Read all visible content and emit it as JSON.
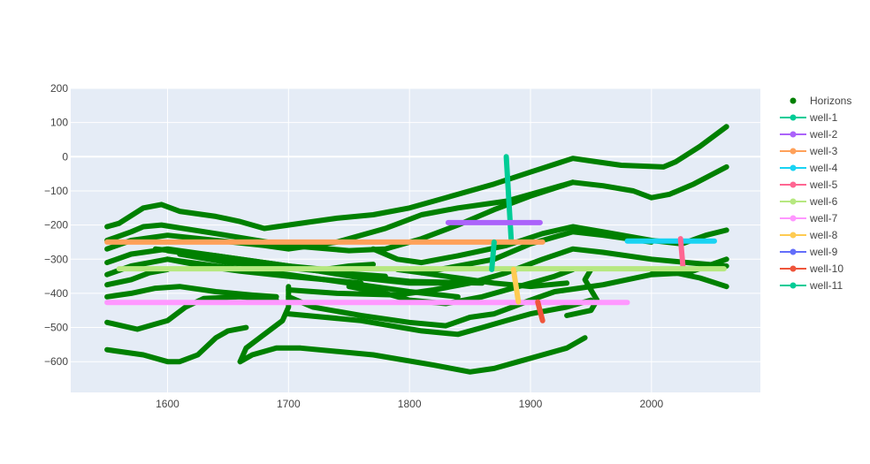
{
  "chart_data": {
    "type": "scatter",
    "title": "",
    "xlabel": "",
    "ylabel": "",
    "xlim": [
      1520,
      2090
    ],
    "ylim": [
      -690,
      200
    ],
    "x_ticks": [
      1600,
      1700,
      1800,
      1900,
      2000
    ],
    "y_ticks": [
      200,
      100,
      0,
      -100,
      -200,
      -300,
      -400,
      -500,
      -600
    ],
    "grid": true,
    "legend_position": "right",
    "colors": {
      "plot_background": "#e5ecf6",
      "grid": "#ffffff",
      "horizons": "#008000"
    },
    "horizons": {
      "name": "Horizons",
      "lines": [
        [
          [
            1550,
            -205
          ],
          [
            1560,
            -195
          ],
          [
            1580,
            -150
          ],
          [
            1595,
            -140
          ],
          [
            1610,
            -160
          ],
          [
            1640,
            -175
          ],
          [
            1660,
            -190
          ],
          [
            1680,
            -210
          ],
          [
            1700,
            -200
          ],
          [
            1740,
            -180
          ],
          [
            1770,
            -170
          ],
          [
            1800,
            -150
          ],
          [
            1830,
            -120
          ],
          [
            1870,
            -80
          ],
          [
            1900,
            -45
          ],
          [
            1935,
            -5
          ],
          [
            1955,
            -15
          ],
          [
            1975,
            -25
          ],
          [
            2010,
            -30
          ],
          [
            2020,
            -15
          ],
          [
            2040,
            30
          ],
          [
            2062,
            88
          ]
        ],
        [
          [
            1550,
            -245
          ],
          [
            1570,
            -220
          ],
          [
            1580,
            -205
          ],
          [
            1595,
            -200
          ],
          [
            1640,
            -225
          ],
          [
            1700,
            -260
          ],
          [
            1750,
            -275
          ],
          [
            1780,
            -270
          ],
          [
            1810,
            -240
          ],
          [
            1840,
            -200
          ],
          [
            1870,
            -155
          ],
          [
            1900,
            -115
          ],
          [
            1935,
            -75
          ],
          [
            1960,
            -85
          ],
          [
            1985,
            -100
          ],
          [
            2000,
            -120
          ],
          [
            2015,
            -110
          ],
          [
            2035,
            -80
          ],
          [
            2062,
            -30
          ]
        ],
        [
          [
            1550,
            -270
          ],
          [
            1570,
            -245
          ],
          [
            1600,
            -230
          ],
          [
            1640,
            -245
          ],
          [
            1680,
            -260
          ],
          [
            1700,
            -270
          ],
          [
            1740,
            -250
          ],
          [
            1780,
            -210
          ],
          [
            1810,
            -170
          ],
          [
            1840,
            -150
          ],
          [
            1880,
            -130
          ],
          [
            1910,
            -100
          ],
          [
            1935,
            -75
          ]
        ],
        [
          [
            1550,
            -310
          ],
          [
            1570,
            -285
          ],
          [
            1600,
            -270
          ],
          [
            1640,
            -290
          ],
          [
            1680,
            -310
          ],
          [
            1700,
            -320
          ],
          [
            1730,
            -330
          ],
          [
            1750,
            -320
          ],
          [
            1770,
            -315
          ]
        ],
        [
          [
            1550,
            -345
          ],
          [
            1570,
            -320
          ],
          [
            1600,
            -300
          ],
          [
            1630,
            -320
          ],
          [
            1660,
            -335
          ],
          [
            1700,
            -350
          ],
          [
            1730,
            -360
          ],
          [
            1760,
            -370
          ]
        ],
        [
          [
            1550,
            -375
          ],
          [
            1570,
            -360
          ],
          [
            1585,
            -340
          ],
          [
            1600,
            -330
          ]
        ],
        [
          [
            1550,
            -410
          ],
          [
            1570,
            -400
          ],
          [
            1590,
            -385
          ],
          [
            1610,
            -380
          ],
          [
            1640,
            -395
          ],
          [
            1670,
            -405
          ],
          [
            1690,
            -410
          ]
        ],
        [
          [
            1550,
            -485
          ],
          [
            1575,
            -505
          ],
          [
            1600,
            -480
          ],
          [
            1615,
            -440
          ],
          [
            1630,
            -415
          ],
          [
            1660,
            -410
          ],
          [
            1690,
            -420
          ]
        ],
        [
          [
            1550,
            -565
          ],
          [
            1580,
            -580
          ],
          [
            1600,
            -600
          ],
          [
            1610,
            -600
          ],
          [
            1625,
            -580
          ],
          [
            1640,
            -530
          ],
          [
            1650,
            -510
          ],
          [
            1665,
            -500
          ]
        ],
        [
          [
            1590,
            -270
          ],
          [
            1640,
            -290
          ],
          [
            1700,
            -320
          ],
          [
            1760,
            -355
          ],
          [
            1800,
            -370
          ],
          [
            1830,
            -370
          ]
        ],
        [
          [
            1600,
            -300
          ],
          [
            1650,
            -325
          ],
          [
            1700,
            -345
          ],
          [
            1760,
            -375
          ],
          [
            1800,
            -395
          ],
          [
            1840,
            -410
          ]
        ],
        [
          [
            1600,
            -275
          ],
          [
            1650,
            -300
          ],
          [
            1700,
            -320
          ],
          [
            1760,
            -350
          ],
          [
            1800,
            -365
          ],
          [
            1860,
            -370
          ]
        ],
        [
          [
            1610,
            -285
          ],
          [
            1650,
            -310
          ],
          [
            1700,
            -325
          ],
          [
            1740,
            -340
          ],
          [
            1780,
            -350
          ]
        ],
        [
          [
            1700,
            -410
          ],
          [
            1720,
            -440
          ],
          [
            1760,
            -465
          ],
          [
            1800,
            -485
          ],
          [
            1830,
            -495
          ],
          [
            1850,
            -470
          ],
          [
            1870,
            -460
          ],
          [
            1885,
            -440
          ],
          [
            1900,
            -420
          ],
          [
            1920,
            -395
          ],
          [
            1940,
            -385
          ],
          [
            1960,
            -375
          ],
          [
            2000,
            -345
          ],
          [
            2030,
            -340
          ],
          [
            2062,
            -300
          ]
        ],
        [
          [
            1700,
            -460
          ],
          [
            1760,
            -480
          ],
          [
            1810,
            -510
          ],
          [
            1840,
            -520
          ],
          [
            1860,
            -500
          ],
          [
            1880,
            -480
          ],
          [
            1900,
            -460
          ],
          [
            1930,
            -440
          ],
          [
            1950,
            -420
          ]
        ],
        [
          [
            1660,
            -600
          ],
          [
            1670,
            -580
          ],
          [
            1690,
            -560
          ],
          [
            1710,
            -560
          ],
          [
            1770,
            -580
          ],
          [
            1820,
            -610
          ],
          [
            1850,
            -630
          ],
          [
            1870,
            -620
          ],
          [
            1890,
            -600
          ],
          [
            1910,
            -580
          ],
          [
            1930,
            -560
          ],
          [
            1945,
            -530
          ]
        ],
        [
          [
            1770,
            -270
          ],
          [
            1790,
            -300
          ],
          [
            1810,
            -310
          ],
          [
            1840,
            -290
          ],
          [
            1880,
            -260
          ],
          [
            1910,
            -225
          ],
          [
            1935,
            -205
          ],
          [
            1960,
            -220
          ],
          [
            2000,
            -245
          ],
          [
            2025,
            -255
          ],
          [
            2045,
            -230
          ],
          [
            2062,
            -215
          ]
        ],
        [
          [
            1790,
            -330
          ],
          [
            1810,
            -340
          ],
          [
            1840,
            -320
          ],
          [
            1870,
            -300
          ],
          [
            1900,
            -255
          ],
          [
            1935,
            -220
          ],
          [
            1960,
            -230
          ],
          [
            2000,
            -250
          ]
        ],
        [
          [
            1750,
            -380
          ],
          [
            1780,
            -400
          ],
          [
            1800,
            -420
          ],
          [
            1830,
            -430
          ],
          [
            1860,
            -410
          ],
          [
            1890,
            -380
          ],
          [
            1920,
            -350
          ],
          [
            1935,
            -330
          ]
        ],
        [
          [
            1810,
            -340
          ],
          [
            1840,
            -355
          ],
          [
            1870,
            -370
          ],
          [
            1900,
            -380
          ],
          [
            1930,
            -370
          ]
        ],
        [
          [
            1700,
            -390
          ],
          [
            1740,
            -400
          ],
          [
            1790,
            -405
          ],
          [
            1820,
            -390
          ],
          [
            1850,
            -370
          ],
          [
            1880,
            -340
          ],
          [
            1910,
            -300
          ],
          [
            1935,
            -270
          ],
          [
            1960,
            -280
          ],
          [
            2000,
            -300
          ],
          [
            2030,
            -310
          ],
          [
            2062,
            -320
          ]
        ],
        [
          [
            2000,
            -330
          ],
          [
            2020,
            -340
          ],
          [
            2040,
            -355
          ],
          [
            2062,
            -380
          ]
        ],
        [
          [
            1950,
            -330
          ],
          [
            1945,
            -360
          ],
          [
            1950,
            -390
          ],
          [
            1955,
            -420
          ],
          [
            1950,
            -450
          ],
          [
            1930,
            -465
          ]
        ],
        [
          [
            1700,
            -380
          ],
          [
            1700,
            -440
          ],
          [
            1695,
            -480
          ],
          [
            1680,
            -520
          ],
          [
            1665,
            -560
          ],
          [
            1660,
            -600
          ]
        ]
      ]
    },
    "series": [
      {
        "name": "well-1",
        "color": "#00cc96",
        "x": [
          1880,
          1884
        ],
        "y": [
          0,
          -240
        ]
      },
      {
        "name": "well-2",
        "color": "#ab63fa",
        "x": [
          1832,
          1908
        ],
        "y": [
          -193,
          -193
        ]
      },
      {
        "name": "well-3",
        "color": "#ffa15a",
        "x": [
          1550,
          1910
        ],
        "y": [
          -250,
          -250
        ]
      },
      {
        "name": "well-4",
        "color": "#19d3f3",
        "x": [
          1980,
          2052
        ],
        "y": [
          -247,
          -247
        ]
      },
      {
        "name": "well-5",
        "color": "#ff6692",
        "x": [
          2024,
          2026
        ],
        "y": [
          -240,
          -320
        ]
      },
      {
        "name": "well-6",
        "color": "#b6e880",
        "x": [
          1560,
          2060
        ],
        "y": [
          -328,
          -328
        ]
      },
      {
        "name": "well-7",
        "color": "#ff97ff",
        "x": [
          1550,
          1980
        ],
        "y": [
          -427,
          -427
        ]
      },
      {
        "name": "well-8",
        "color": "#fecb52",
        "x": [
          1886,
          1890
        ],
        "y": [
          -330,
          -425
        ]
      },
      {
        "name": "well-9",
        "color": "#636efa",
        "x": [],
        "y": []
      },
      {
        "name": "well-10",
        "color": "#ef553b",
        "x": [
          1906,
          1910
        ],
        "y": [
          -425,
          -480
        ]
      },
      {
        "name": "well-11",
        "color": "#00cc96",
        "x": [
          1870,
          1868
        ],
        "y": [
          -250,
          -330
        ]
      }
    ]
  }
}
